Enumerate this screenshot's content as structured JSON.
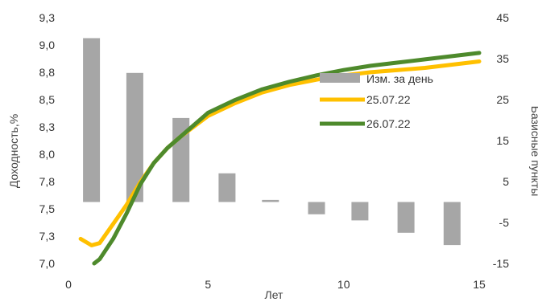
{
  "chart_data": {
    "type": "bar+line",
    "xlabel": "Лет",
    "ylabel_left": "Доходность,%",
    "ylabel_right": "Базисные пункты",
    "xlim": [
      0,
      15
    ],
    "x_ticks": [
      "0",
      "5",
      "10",
      "15"
    ],
    "ylim_left": [
      7.0,
      9.3
    ],
    "y_ticks_left": [
      "7,0",
      "7,3",
      "7,5",
      "7,8",
      "8,0",
      "8,3",
      "8,5",
      "8,8",
      "9,0",
      "9,3"
    ],
    "ylim_right": [
      -15,
      45
    ],
    "y_ticks_right": [
      "-15",
      "-5",
      "5",
      "15",
      "25",
      "35",
      "45"
    ],
    "grid": false,
    "legend_position": "right-middle",
    "bars": {
      "name": "Изм. за день",
      "color": "#a6a6a6",
      "axis": "right",
      "x": [
        0.7,
        2.3,
        4.0,
        5.7,
        7.3,
        9.0,
        10.6,
        12.3,
        14.0
      ],
      "values": [
        40,
        31.5,
        20.5,
        7,
        0.5,
        -3,
        -4.5,
        -7.5,
        -10.5
      ]
    },
    "series": [
      {
        "name": "25.07.22",
        "color": "#ffc000",
        "axis": "left",
        "x": [
          0.3,
          0.7,
          1.0,
          1.5,
          2.0,
          2.5,
          3.0,
          3.5,
          4.0,
          5.0,
          6.0,
          7.0,
          8.0,
          9.0,
          10.0,
          11.0,
          12.0,
          13.0,
          14.0,
          15.0
        ],
        "values": [
          7.23,
          7.17,
          7.19,
          7.37,
          7.55,
          7.76,
          7.94,
          8.08,
          8.19,
          8.38,
          8.5,
          8.6,
          8.67,
          8.72,
          8.76,
          8.79,
          8.81,
          8.83,
          8.86,
          8.89
        ]
      },
      {
        "name": "26.07.22",
        "color": "#4e8a2c",
        "axis": "left",
        "x": [
          0.8,
          1.0,
          1.5,
          2.0,
          2.5,
          3.0,
          3.5,
          4.0,
          5.0,
          6.0,
          7.0,
          8.0,
          9.0,
          10.0,
          11.0,
          12.0,
          13.0,
          14.0,
          15.0
        ],
        "values": [
          7.0,
          7.04,
          7.23,
          7.47,
          7.74,
          7.94,
          8.08,
          8.19,
          8.41,
          8.53,
          8.63,
          8.7,
          8.76,
          8.81,
          8.85,
          8.88,
          8.91,
          8.94,
          8.97
        ]
      }
    ]
  }
}
